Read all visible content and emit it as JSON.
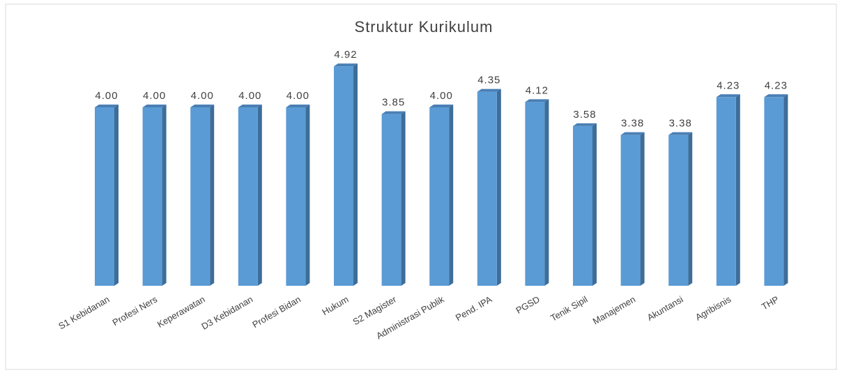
{
  "chart_data": {
    "type": "bar",
    "title": "Struktur Kurikulum",
    "categories": [
      "S1 Kebidanan",
      "Profesi Ners",
      "Keperawatan",
      "D3 Kebidanan",
      "Profesi Bidan",
      "Hukum",
      "S2 Magister",
      "Administrasi Publik",
      "Pend. IPA",
      "PGSD",
      "Tenik Sipil",
      "Manajemen",
      "Akuntansi",
      "Agribisnis",
      "THP"
    ],
    "values": [
      4.0,
      4.0,
      4.0,
      4.0,
      4.0,
      4.92,
      3.85,
      4.0,
      4.35,
      4.12,
      3.58,
      3.38,
      3.38,
      4.23,
      4.23
    ],
    "value_labels": [
      "4.00",
      "4.00",
      "4.00",
      "4.00",
      "4.00",
      "4.92",
      "3.85",
      "4.00",
      "4.35",
      "4.12",
      "3.58",
      "3.38",
      "3.38",
      "4.23",
      "4.23"
    ],
    "color": "#5b9bd5"
  }
}
